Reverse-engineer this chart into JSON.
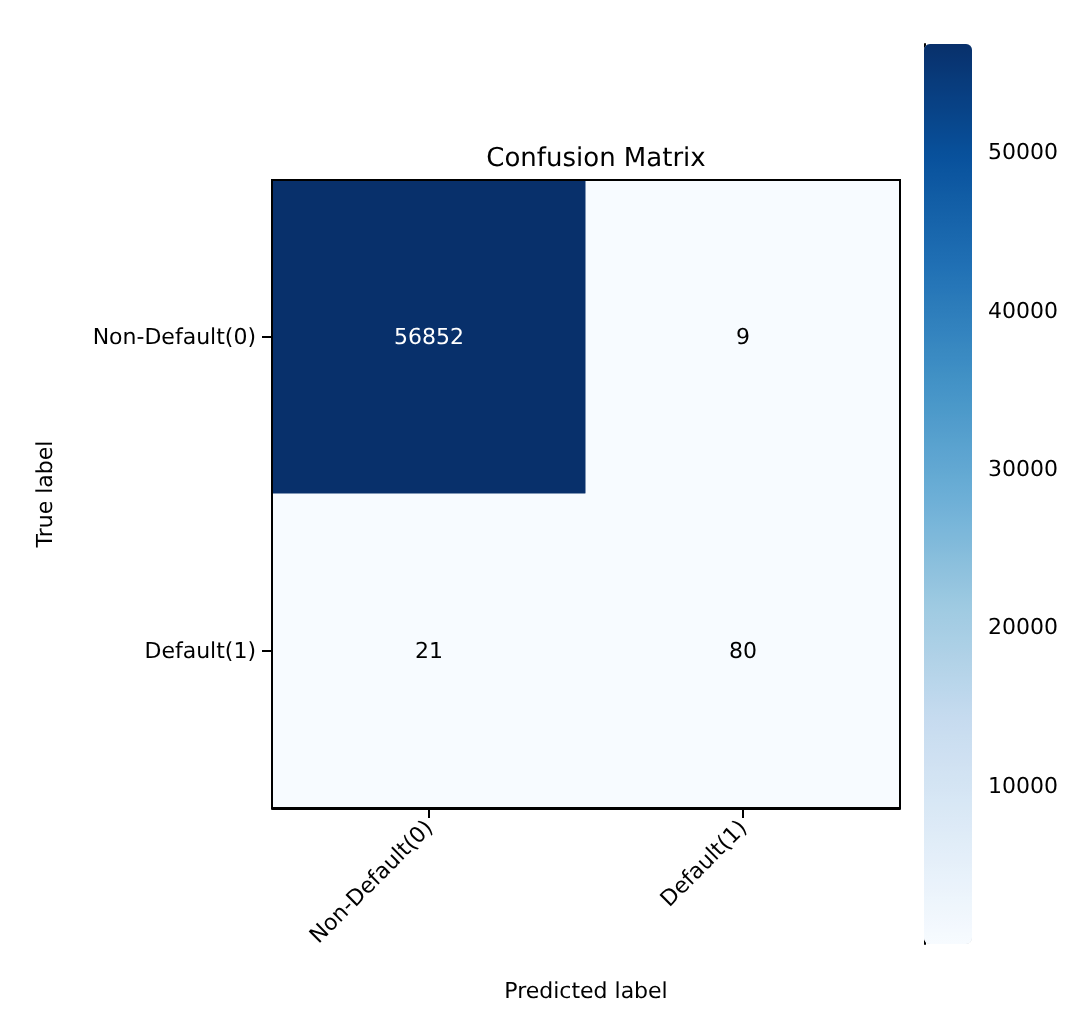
{
  "chart_data": {
    "type": "heatmap",
    "title": "Confusion Matrix",
    "xlabel": "Predicted label",
    "ylabel": "True label",
    "categories": [
      "Non-Default(0)",
      "Default(1)"
    ],
    "y_categories": [
      "Non-Default(0)",
      "Default(1)"
    ],
    "cells": [
      [
        56852,
        9
      ],
      [
        21,
        80
      ]
    ],
    "clim": [
      9,
      56852
    ],
    "cticks": [
      10000,
      20000,
      30000,
      40000,
      50000
    ],
    "data_labels": true,
    "grid": false
  }
}
